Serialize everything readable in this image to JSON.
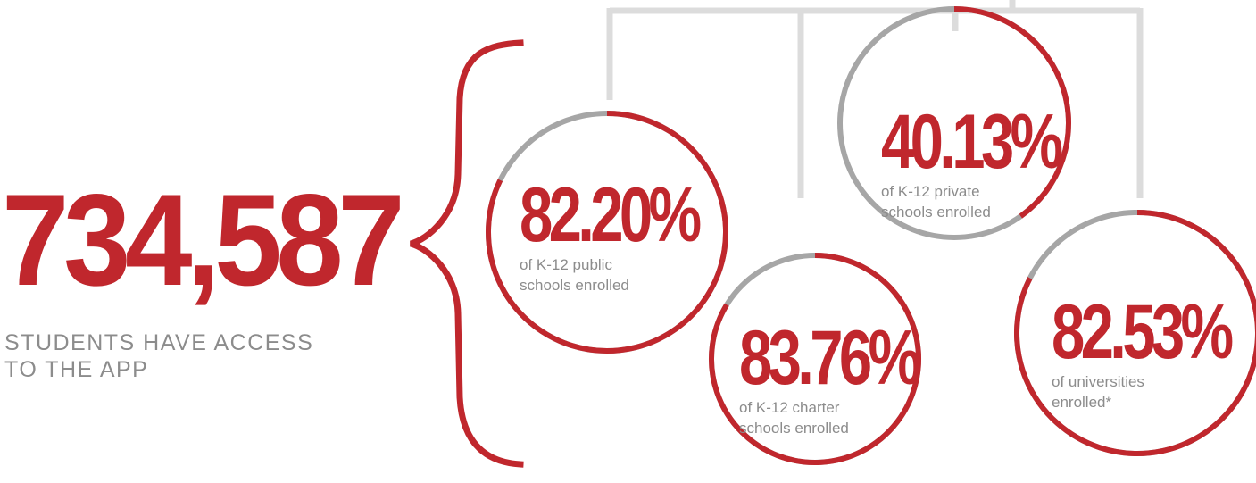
{
  "headline": {
    "count": "734,587",
    "subtitle_lines": [
      "STUDENTS HAVE ACCESS",
      "TO THE APP"
    ]
  },
  "stats": [
    {
      "value": "82.20%",
      "percent": 82.2,
      "label_lines": [
        "of K-12 public",
        "schools enrolled"
      ]
    },
    {
      "value": "83.76%",
      "percent": 83.76,
      "label_lines": [
        "of K-12 charter",
        "schools enrolled"
      ]
    },
    {
      "value": "40.13%",
      "percent": 40.13,
      "label_lines": [
        "of K-12 private",
        "schools enrolled"
      ]
    },
    {
      "value": "82.53%",
      "percent": 82.53,
      "label_lines": [
        "of universities",
        "enrolled*"
      ]
    }
  ],
  "colors": {
    "accent": "#c0272d",
    "ring_remainder": "#a6a6a6",
    "connector": "#dcdcdc",
    "muted_text": "#8c8c8c"
  }
}
